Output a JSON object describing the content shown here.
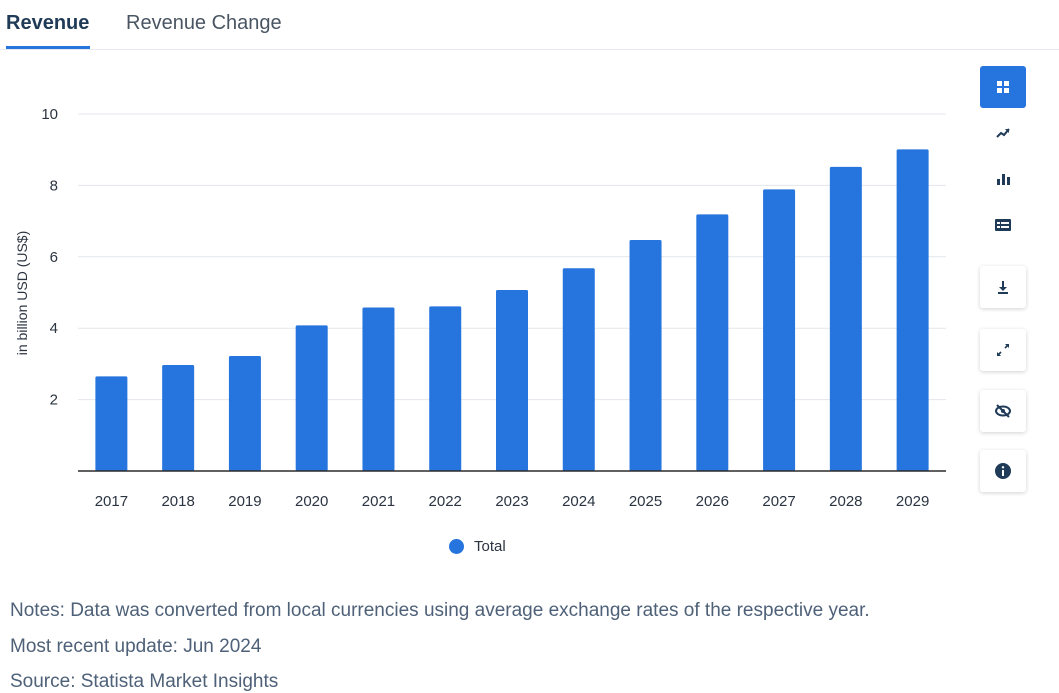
{
  "tabs": [
    {
      "label": "Revenue",
      "active": true
    },
    {
      "label": "Revenue Change",
      "active": false
    }
  ],
  "colors": {
    "accent": "#2674de",
    "bar": "#2674de",
    "grid": "#e3e7ec",
    "axis": "#2b2b2b"
  },
  "chart_data": {
    "type": "bar",
    "categories": [
      "2017",
      "2018",
      "2019",
      "2020",
      "2021",
      "2022",
      "2023",
      "2024",
      "2025",
      "2026",
      "2027",
      "2028",
      "2029"
    ],
    "series": [
      {
        "name": "Total",
        "values": [
          2.65,
          2.97,
          3.22,
          4.08,
          4.58,
          4.61,
          5.07,
          5.68,
          6.47,
          7.19,
          7.89,
          8.52,
          9.01
        ]
      }
    ],
    "ylabel": "in billion USD (US$)",
    "xlabel": "",
    "ylim": [
      0,
      10
    ],
    "yticks": [
      2,
      4,
      6,
      8,
      10
    ],
    "grid": true,
    "legend_position": "bottom-center"
  },
  "legend": {
    "label": "Total"
  },
  "toolbar": {
    "items": [
      "grid-view-icon",
      "trend-line-icon",
      "bar-chart-icon",
      "table-icon",
      "download-icon",
      "expand-icon",
      "hide-icon",
      "info-icon"
    ]
  },
  "notes": {
    "line1": "Notes: Data was converted from local currencies using average exchange rates of the respective year.",
    "line2": "Most recent update: Jun 2024",
    "line3": "Source: Statista Market Insights"
  }
}
